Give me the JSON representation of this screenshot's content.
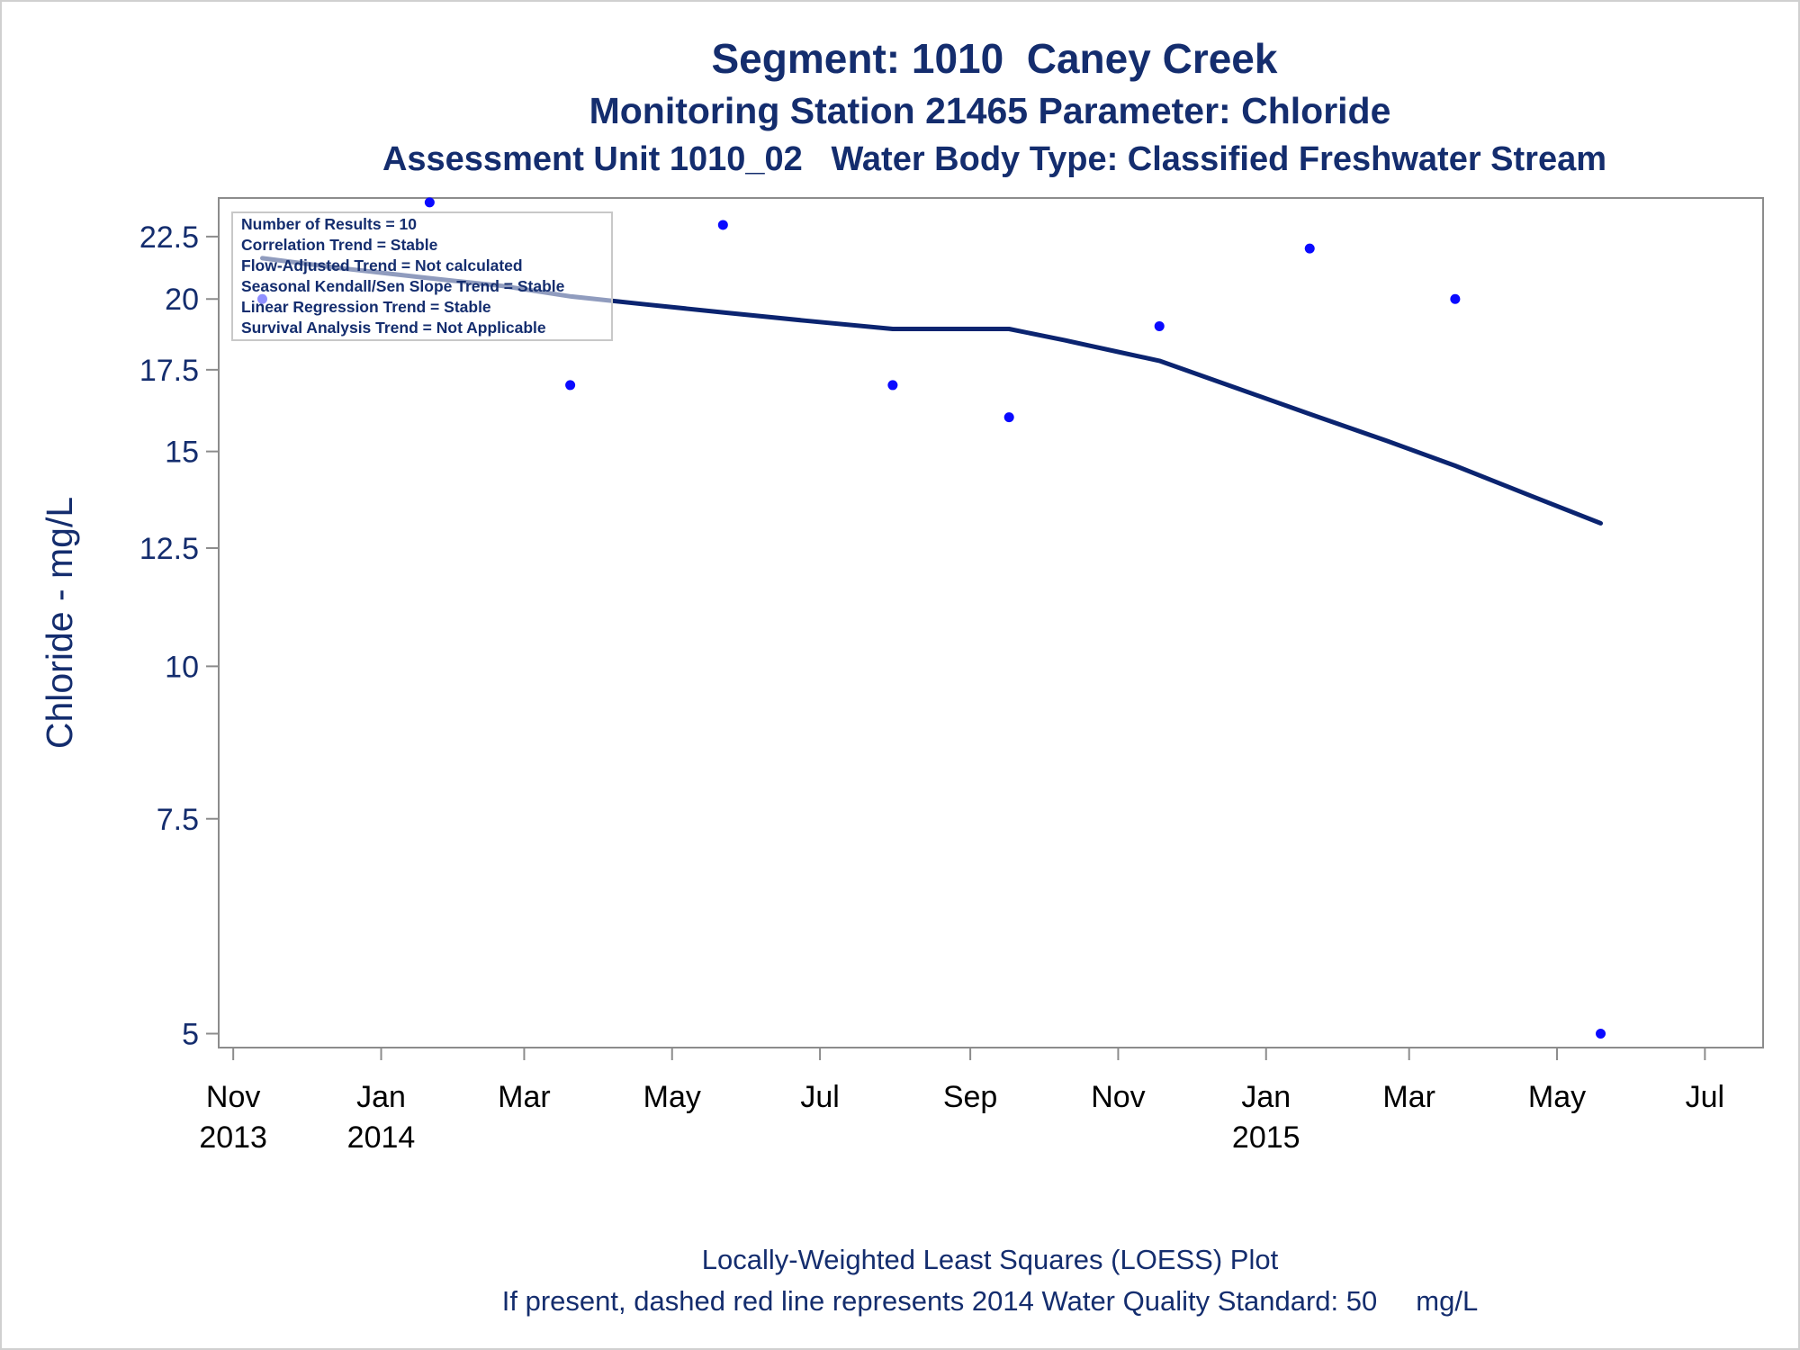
{
  "titles": {
    "line1": "Segment: 1010  Caney Creek",
    "line2": "Monitoring Station 21465 Parameter: Chloride",
    "line3": "Assessment Unit 1010_02   Water Body Type: Classified Freshwater Stream"
  },
  "footnotes": {
    "line1": "Locally-Weighted Least Squares (LOESS) Plot",
    "line2": "If present, dashed red line represents 2014 Water Quality Standard: 50     mg/L"
  },
  "stats": [
    "Number of Results = 10",
    "Correlation Trend = Stable",
    "Flow-Adjusted Trend = Not calculated",
    "Seasonal Kendall/Sen Slope Trend = Stable",
    "Linear Regression Trend = Stable",
    "Survival Analysis Trend = Not Applicable"
  ],
  "colors": {
    "text": "#142d6e",
    "points": "#0a0aff",
    "loess": "#0b2470",
    "axis": "#8c8c8c"
  },
  "chart_data": {
    "type": "scatter",
    "ylabel": "Chloride - mg/L",
    "yscale": "log",
    "ylim": [
      4.87,
      24.2
    ],
    "yticks": [
      {
        "value": 5,
        "label": "5"
      },
      {
        "value": 7.5,
        "label": "7.5"
      },
      {
        "value": 10,
        "label": "10"
      },
      {
        "value": 12.5,
        "label": "12.5"
      },
      {
        "value": 15,
        "label": "15"
      },
      {
        "value": 17.5,
        "label": "17.5"
      },
      {
        "value": 20,
        "label": "20"
      },
      {
        "value": 22.5,
        "label": "22.5"
      }
    ],
    "xlim": [
      "2013-10-26",
      "2015-07-25"
    ],
    "xticks": [
      {
        "date": "2013-11-01",
        "month": "Nov",
        "year": "2013"
      },
      {
        "date": "2014-01-01",
        "month": "Jan",
        "year": "2014"
      },
      {
        "date": "2014-03-01",
        "month": "Mar",
        "year": ""
      },
      {
        "date": "2014-05-01",
        "month": "May",
        "year": ""
      },
      {
        "date": "2014-07-01",
        "month": "Jul",
        "year": ""
      },
      {
        "date": "2014-09-01",
        "month": "Sep",
        "year": ""
      },
      {
        "date": "2014-11-01",
        "month": "Nov",
        "year": ""
      },
      {
        "date": "2015-01-01",
        "month": "Jan",
        "year": "2015"
      },
      {
        "date": "2015-03-01",
        "month": "Mar",
        "year": ""
      },
      {
        "date": "2015-05-01",
        "month": "May",
        "year": ""
      },
      {
        "date": "2015-07-01",
        "month": "Jul",
        "year": ""
      }
    ],
    "points": [
      {
        "date": "2013-11-13",
        "value": 20
      },
      {
        "date": "2014-01-21",
        "value": 24
      },
      {
        "date": "2014-03-20",
        "value": 17
      },
      {
        "date": "2014-05-22",
        "value": 23
      },
      {
        "date": "2014-07-31",
        "value": 17
      },
      {
        "date": "2014-09-17",
        "value": 16
      },
      {
        "date": "2014-11-18",
        "value": 19
      },
      {
        "date": "2015-01-19",
        "value": 22
      },
      {
        "date": "2015-03-20",
        "value": 20
      },
      {
        "date": "2015-05-19",
        "value": 5
      }
    ],
    "loess": [
      {
        "date": "2013-11-13",
        "value": 21.6
      },
      {
        "date": "2013-12-15",
        "value": 21.2
      },
      {
        "date": "2014-01-21",
        "value": 20.8
      },
      {
        "date": "2014-02-20",
        "value": 20.5
      },
      {
        "date": "2014-03-20",
        "value": 20.1
      },
      {
        "date": "2014-04-20",
        "value": 19.8
      },
      {
        "date": "2014-05-22",
        "value": 19.5
      },
      {
        "date": "2014-06-25",
        "value": 19.2
      },
      {
        "date": "2014-07-31",
        "value": 18.9
      },
      {
        "date": "2014-08-25",
        "value": 18.9
      },
      {
        "date": "2014-09-17",
        "value": 18.9
      },
      {
        "date": "2014-10-10",
        "value": 18.5
      },
      {
        "date": "2014-11-01",
        "value": 18.1
      },
      {
        "date": "2014-11-18",
        "value": 17.8
      },
      {
        "date": "2014-12-20",
        "value": 16.9
      },
      {
        "date": "2015-01-19",
        "value": 16.1
      },
      {
        "date": "2015-02-20",
        "value": 15.3
      },
      {
        "date": "2015-03-20",
        "value": 14.6
      },
      {
        "date": "2015-04-20",
        "value": 13.8
      },
      {
        "date": "2015-05-19",
        "value": 13.1
      }
    ]
  }
}
